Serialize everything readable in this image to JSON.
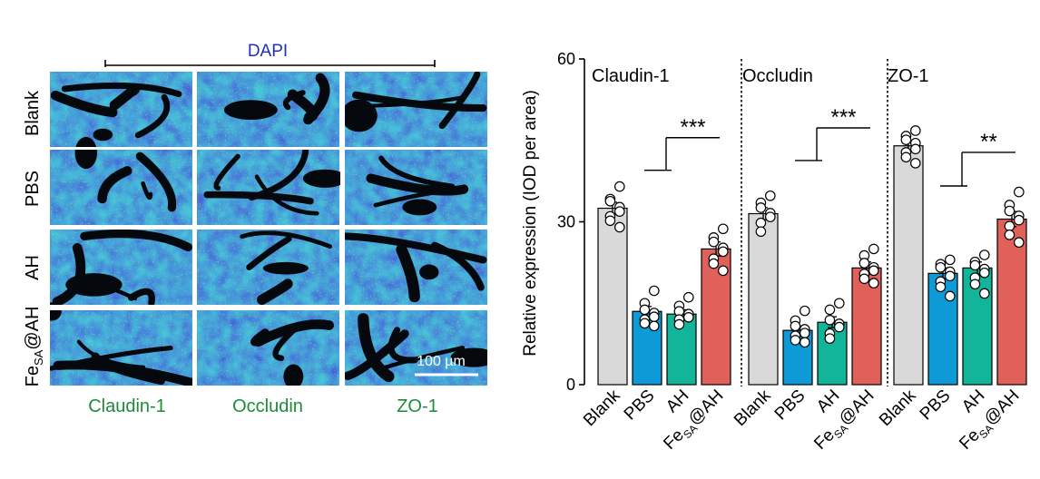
{
  "panel_a": {
    "dapi_label": "DAPI",
    "row_labels": [
      "Blank",
      "PBS",
      "AH",
      "Fe"
    ],
    "row_label_subscript": "SA",
    "row_label_suffix": "@AH",
    "column_labels": [
      "Claudin-1",
      "Occludin",
      "ZO-1"
    ],
    "scale_bar_label": "100 µm",
    "colors": {
      "dapi": "#1f2fbf",
      "stain_label": "#1e8a3a",
      "tissue_blue": "#2a45d8",
      "tissue_green": "#3aa04a",
      "lumen": "#05080c"
    }
  },
  "chart_data": {
    "type": "bar",
    "ylabel": "Relative expression (IOD per area)",
    "ylim": [
      0,
      60
    ],
    "yticks": [
      "0",
      "30",
      "60"
    ],
    "group_separator": "dotted",
    "categories": [
      "Blank",
      "PBS",
      "AH",
      "Fe@AH"
    ],
    "category_subscript": {
      "index": 3,
      "base": "Fe",
      "sub": "SA",
      "suffix": "@AH"
    },
    "colors": [
      "#d9d9d9",
      "#0e9ad6",
      "#13b59a",
      "#e0605a"
    ],
    "series": [
      {
        "name": "Claudin-1",
        "values": [
          32.5,
          13.5,
          13.0,
          25.0
        ],
        "errors": [
          1.1,
          0.9,
          0.8,
          1.3
        ],
        "points": [
          [
            36.5,
            34.2,
            33.8,
            32.7,
            31.9,
            31.0,
            30.2,
            29.0
          ],
          [
            17.3,
            15.0,
            13.8,
            13.2,
            12.5,
            12.0,
            11.3,
            10.8
          ],
          [
            16.1,
            14.5,
            13.5,
            13.0,
            12.4,
            12.0,
            11.1
          ],
          [
            28.7,
            27.1,
            26.3,
            25.2,
            24.5,
            23.2,
            22.3,
            21.0
          ]
        ],
        "significance": {
          "from": 1,
          "to": 3,
          "label": "***",
          "y": 45.5,
          "stem": 39.5
        }
      },
      {
        "name": "Occludin",
        "values": [
          31.5,
          10.0,
          11.5,
          21.5
        ],
        "errors": [
          1.1,
          0.8,
          1.0,
          1.1
        ],
        "points": [
          [
            34.8,
            33.5,
            32.6,
            31.6,
            30.9,
            29.8,
            28.2
          ],
          [
            13.6,
            11.8,
            10.8,
            10.2,
            9.5,
            9.0,
            8.2,
            7.8
          ],
          [
            15.0,
            13.8,
            11.9,
            11.2,
            10.6,
            9.4,
            8.5
          ],
          [
            25.0,
            23.8,
            22.4,
            21.6,
            21.0,
            20.4,
            19.5,
            18.7
          ]
        ],
        "significance": {
          "from": 1,
          "to": 3,
          "label": "***",
          "y": 47.3,
          "stem": 41.3
        }
      },
      {
        "name": "ZO-1",
        "values": [
          44.0,
          20.5,
          21.5,
          30.5
        ],
        "errors": [
          0.9,
          1.0,
          1.1,
          1.4
        ],
        "points": [
          [
            46.8,
            45.8,
            45.1,
            44.5,
            43.4,
            42.8,
            41.9,
            40.8
          ],
          [
            23.0,
            22.2,
            21.6,
            20.8,
            20.0,
            19.0,
            18.0,
            16.3
          ],
          [
            23.9,
            22.6,
            22.0,
            21.3,
            20.6,
            19.7,
            18.5,
            16.8
          ],
          [
            35.5,
            33.1,
            32.0,
            31.1,
            30.3,
            29.2,
            27.6,
            26.2
          ]
        ],
        "significance": {
          "from": 1,
          "to": 3,
          "label": "**",
          "y": 42.8,
          "stem": 36.6
        }
      }
    ]
  }
}
